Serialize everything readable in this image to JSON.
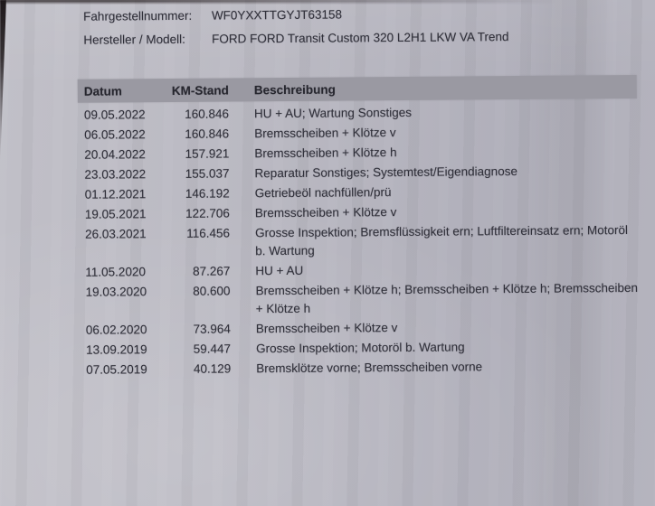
{
  "colors": {
    "paper": "#bab9c2",
    "paper_light": "#c1c0c8",
    "paper_shadow": "#b0afba",
    "header_bar": "#9a99a2",
    "text": "#30303a",
    "edge_shadow": "#1f191b"
  },
  "document": {
    "fields": [
      {
        "label": "Fahrgestellnummer:",
        "value": "WF0YXXTTGYJT63158"
      },
      {
        "label": "Hersteller / Modell:",
        "value": "FORD FORD Transit Custom 320 L2H1 LKW VA Trend"
      }
    ]
  },
  "table": {
    "columns": [
      "Datum",
      "KM-Stand",
      "Beschreibung"
    ],
    "rows": [
      {
        "date": "09.05.2022",
        "km": "160.846",
        "desc": "HU + AU; Wartung Sonstiges"
      },
      {
        "date": "06.05.2022",
        "km": "160.846",
        "desc": "Bremsscheiben + Klötze v"
      },
      {
        "date": "20.04.2022",
        "km": "157.921",
        "desc": "Bremsscheiben + Klötze h"
      },
      {
        "date": "23.03.2022",
        "km": "155.037",
        "desc": "Reparatur Sonstiges; Systemtest/Eigendiagnose"
      },
      {
        "date": "01.12.2021",
        "km": "146.192",
        "desc": "Getriebeöl nachfüllen/prü"
      },
      {
        "date": "19.05.2021",
        "km": "122.706",
        "desc": "Bremsscheiben + Klötze v"
      },
      {
        "date": "26.03.2021",
        "km": "116.456",
        "desc": "Grosse Inspektion; Bremsflüssigkeit ern; Luftfiltereinsatz ern; Motoröl b. Wartung"
      },
      {
        "date": "11.05.2020",
        "km": "87.267",
        "desc": "HU + AU"
      },
      {
        "date": "19.03.2020",
        "km": "80.600",
        "desc": "Bremsscheiben + Klötze h; Bremsscheiben + Klötze h; Bremsscheiben + Klötze h"
      },
      {
        "date": "06.02.2020",
        "km": "73.964",
        "desc": "Bremsscheiben + Klötze v"
      },
      {
        "date": "13.09.2019",
        "km": "59.447",
        "desc": "Grosse Inspektion; Motoröl b. Wartung"
      },
      {
        "date": "07.05.2019",
        "km": "40.129",
        "desc": "Bremsklötze vorne; Bremsscheiben vorne"
      }
    ]
  }
}
